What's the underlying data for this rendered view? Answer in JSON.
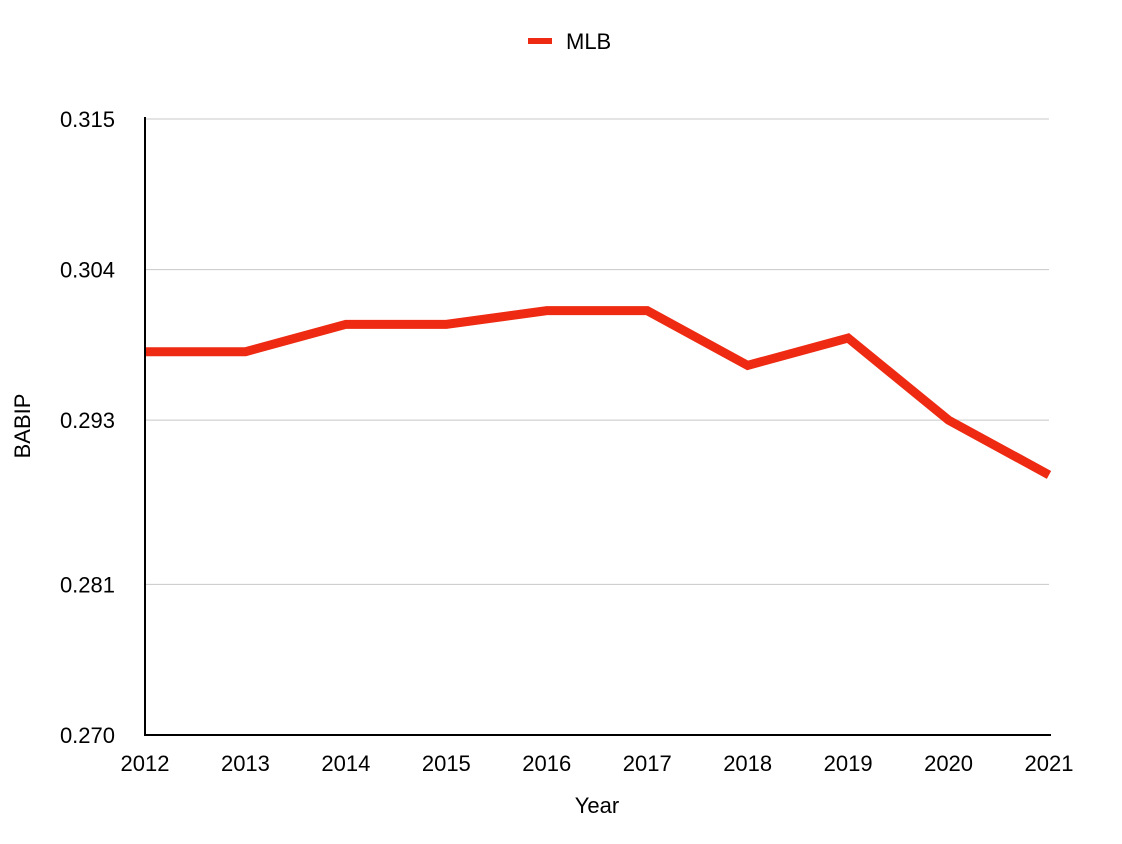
{
  "chart_data": {
    "type": "line",
    "title": "",
    "xlabel": "Year",
    "ylabel": "BABIP",
    "categories": [
      "2012",
      "2013",
      "2014",
      "2015",
      "2016",
      "2017",
      "2018",
      "2019",
      "2020",
      "2021"
    ],
    "yticks": [
      "0.270",
      "0.281",
      "0.293",
      "0.304",
      "0.315"
    ],
    "ylim": [
      0.27,
      0.315
    ],
    "grid": true,
    "legend_position": "top-center",
    "series": [
      {
        "name": "MLB",
        "color": "#EE2A12",
        "values": [
          0.298,
          0.298,
          0.3,
          0.3,
          0.301,
          0.301,
          0.297,
          0.299,
          0.293,
          0.289
        ]
      }
    ]
  }
}
